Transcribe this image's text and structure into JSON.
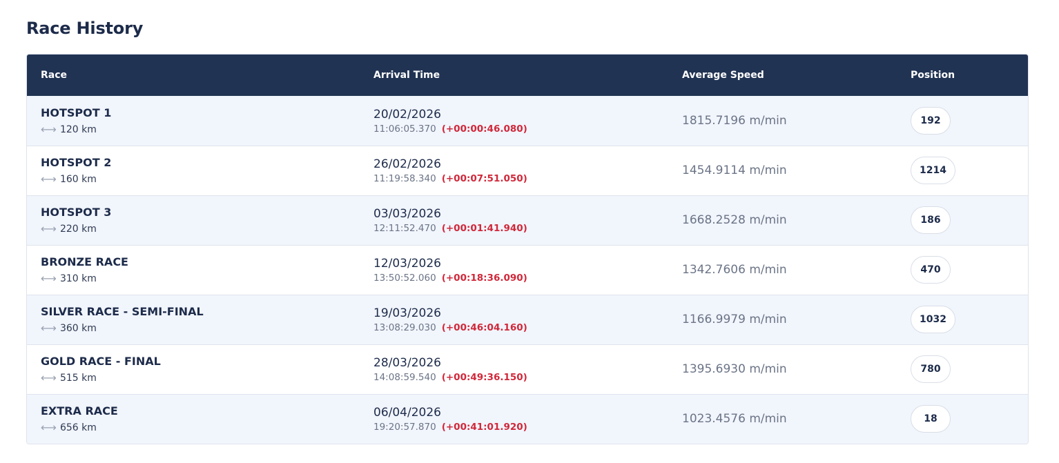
{
  "page": {
    "title": "Race History"
  },
  "table": {
    "headers": {
      "race": "Race",
      "arrival": "Arrival Time",
      "speed": "Average Speed",
      "position": "Position"
    },
    "rows": [
      {
        "name": "HOTSPOT 1",
        "distance": "120 km",
        "date": "20/02/2026",
        "time": "11:06:05.370",
        "delta": "(+00:00:46.080)",
        "speed": "1815.7196 m/min",
        "position": "192"
      },
      {
        "name": "HOTSPOT 2",
        "distance": "160 km",
        "date": "26/02/2026",
        "time": "11:19:58.340",
        "delta": "(+00:07:51.050)",
        "speed": "1454.9114 m/min",
        "position": "1214"
      },
      {
        "name": "HOTSPOT 3",
        "distance": "220 km",
        "date": "03/03/2026",
        "time": "12:11:52.470",
        "delta": "(+00:01:41.940)",
        "speed": "1668.2528 m/min",
        "position": "186"
      },
      {
        "name": "BRONZE RACE",
        "distance": "310 km",
        "date": "12/03/2026",
        "time": "13:50:52.060",
        "delta": "(+00:18:36.090)",
        "speed": "1342.7606 m/min",
        "position": "470"
      },
      {
        "name": "SILVER RACE - SEMI-FINAL",
        "distance": "360 km",
        "date": "19/03/2026",
        "time": "13:08:29.030",
        "delta": "(+00:46:04.160)",
        "speed": "1166.9979 m/min",
        "position": "1032"
      },
      {
        "name": "GOLD RACE - FINAL",
        "distance": "515 km",
        "date": "28/03/2026",
        "time": "14:08:59.540",
        "delta": "(+00:49:36.150)",
        "speed": "1395.6930 m/min",
        "position": "780"
      },
      {
        "name": "EXTRA RACE",
        "distance": "656 km",
        "date": "06/04/2026",
        "time": "19:20:57.870",
        "delta": "(+00:41:01.920)",
        "speed": "1023.4576 m/min",
        "position": "18"
      }
    ]
  },
  "icons": {
    "distance": "distance-arrow-icon"
  },
  "colors": {
    "header_bg": "#213353",
    "delta_red": "#d0283a",
    "row_alt": "#f1f5fc"
  }
}
